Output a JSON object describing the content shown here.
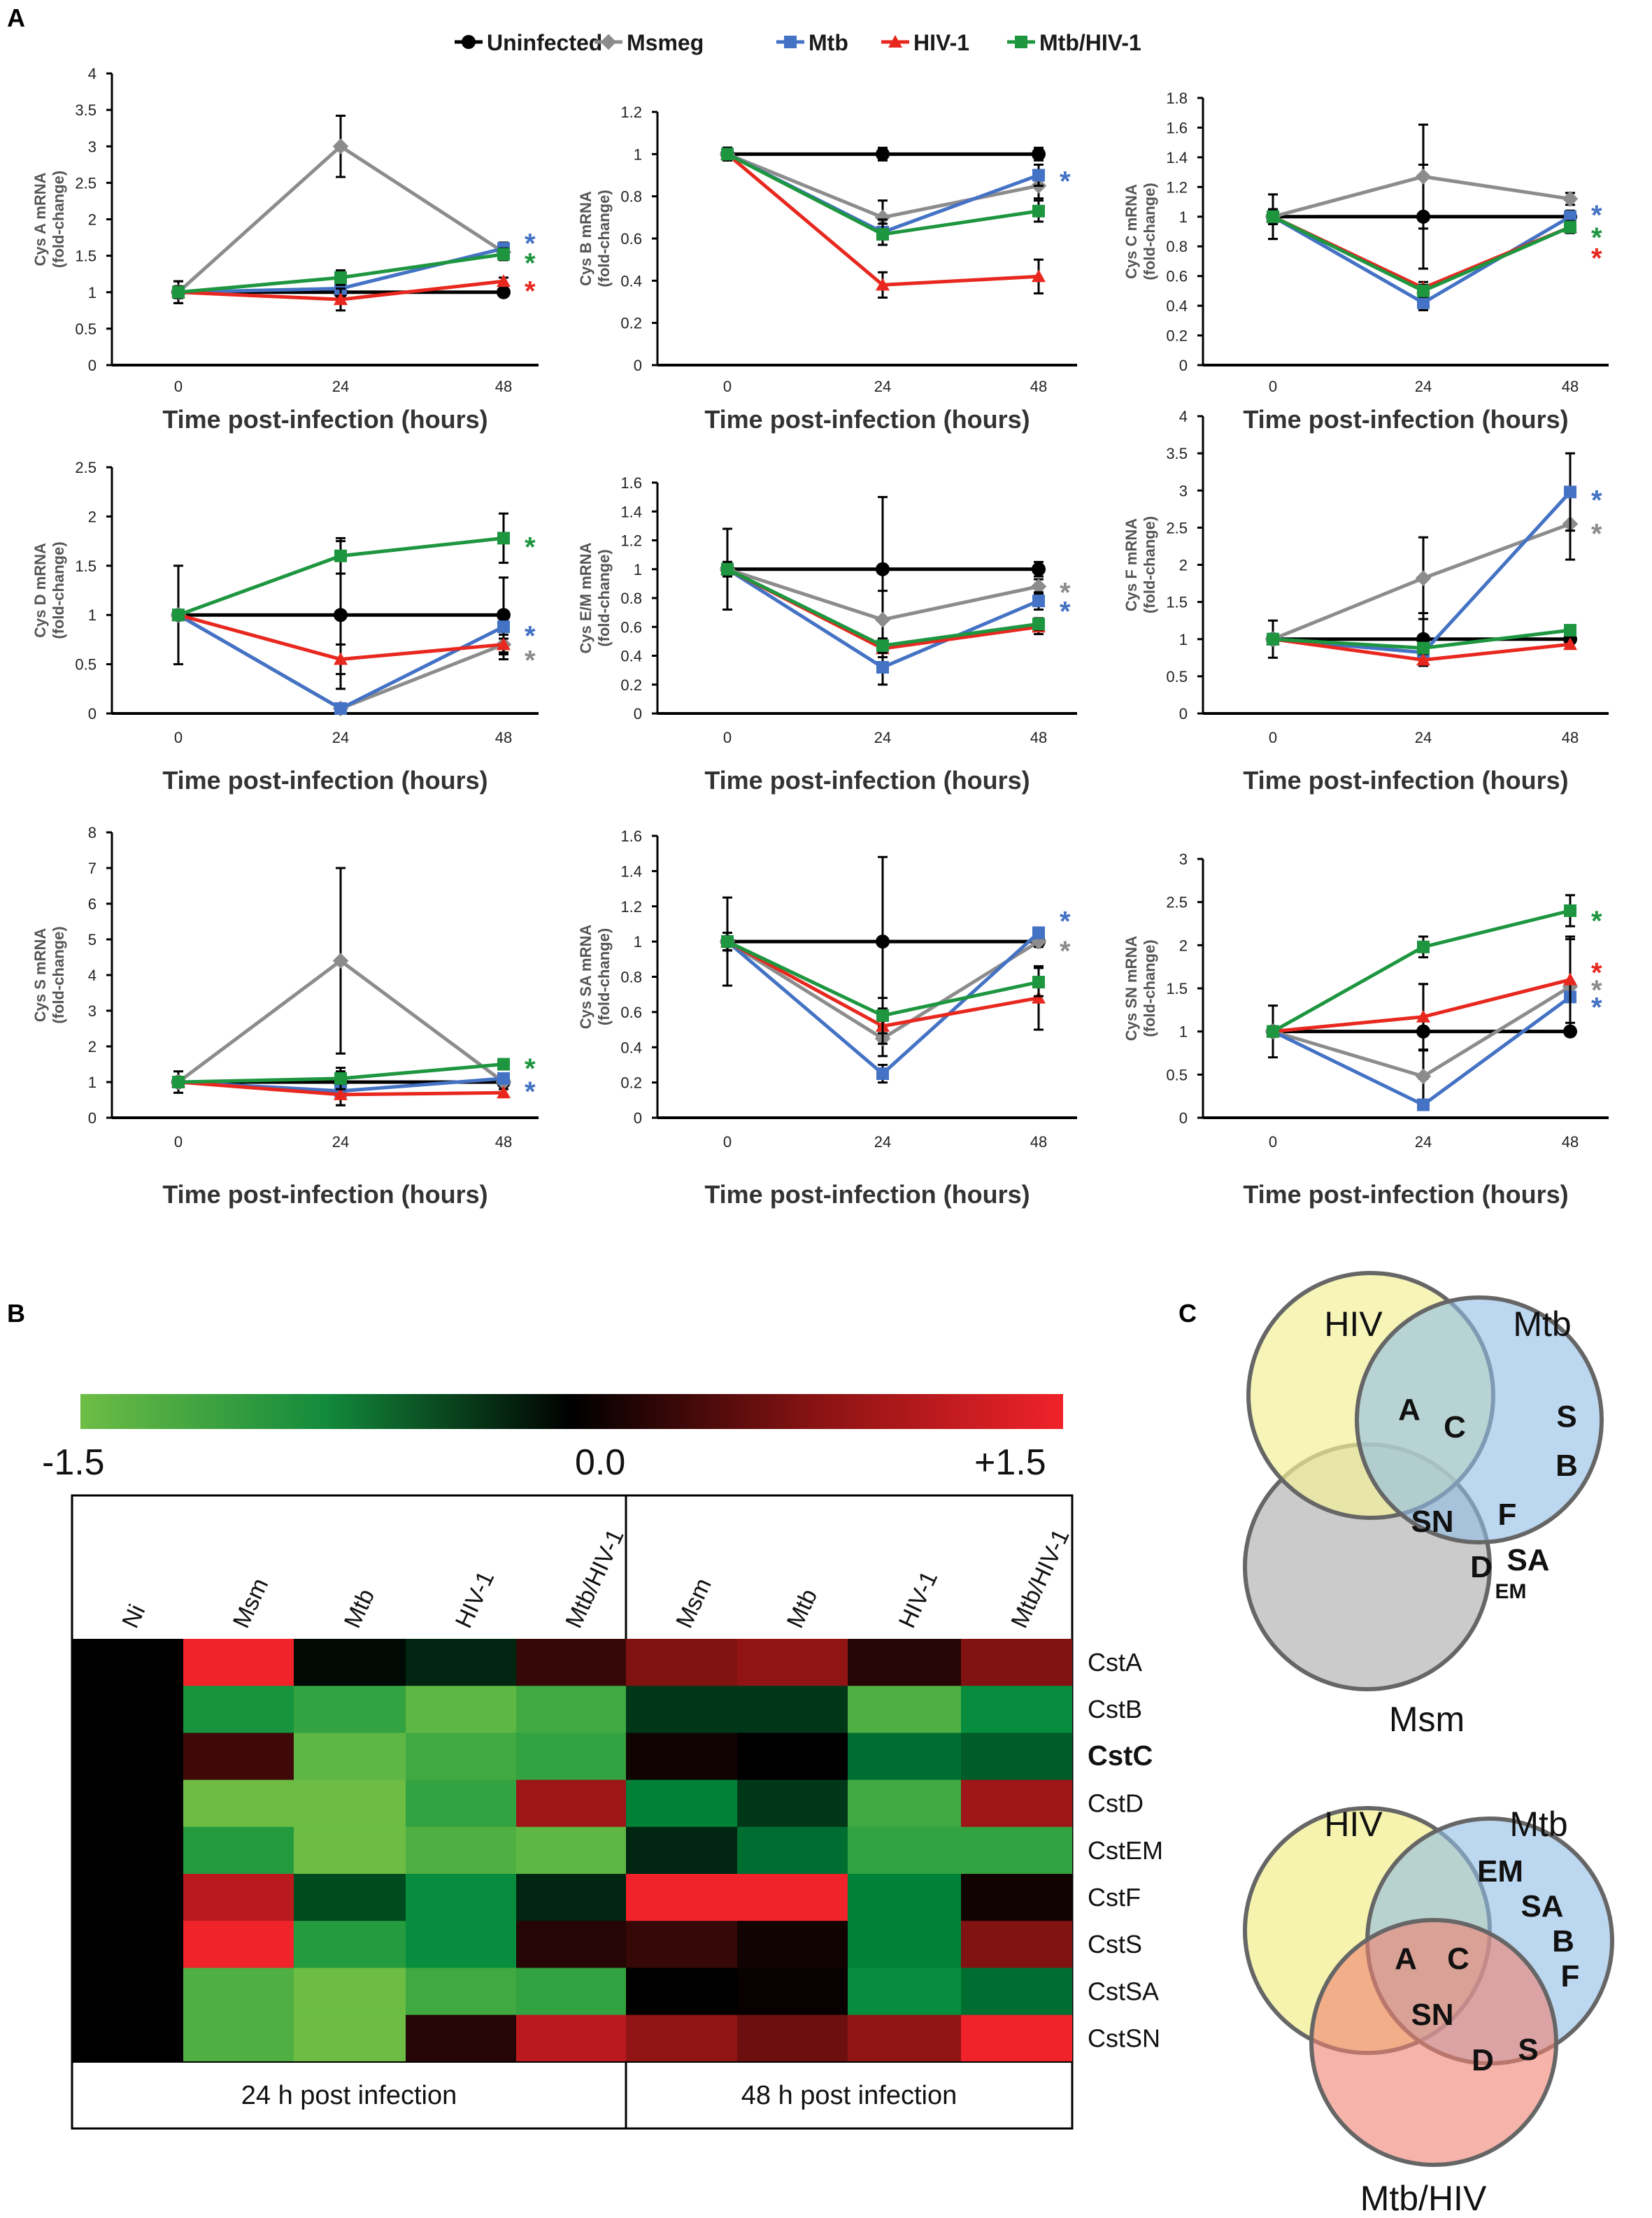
{
  "panel_labels": {
    "a": "A",
    "b": "B",
    "c": "C"
  },
  "colors": {
    "Uninfected": "#000000",
    "Msmeg": "#8c8c8c",
    "Mtb": "#4472c4",
    "HIV-1": "#e8281f",
    "Mtb/HIV-1": "#1e9640"
  },
  "legend": [
    "Uninfected",
    "Msmeg",
    "Mtb",
    "HIV-1",
    "Mtb/HIV-1"
  ],
  "chart_data": [
    {
      "type": "line",
      "title": "",
      "ylabel": "Cys A mRNA\n(fold-change)",
      "xlabel": "Time post-infection (hours)",
      "x": [
        0,
        24,
        48
      ],
      "ylim": [
        0,
        4
      ],
      "yticks": [
        0,
        0.5,
        1,
        1.5,
        2,
        2.5,
        3,
        3.5,
        4
      ],
      "series": [
        {
          "name": "Uninfected",
          "values": [
            1,
            1,
            1
          ],
          "err": [
            0.15,
            0.05,
            0.04
          ]
        },
        {
          "name": "Msmeg",
          "values": [
            1,
            3.0,
            1.55
          ],
          "err": [
            0.15,
            0.42,
            0.06
          ]
        },
        {
          "name": "Mtb",
          "values": [
            1,
            1.05,
            1.6
          ],
          "err": [
            0.08,
            0.08,
            0.08
          ]
        },
        {
          "name": "HIV-1",
          "values": [
            1,
            0.9,
            1.15
          ],
          "err": [
            0.08,
            0.15,
            0.05
          ]
        },
        {
          "name": "Mtb/HIV-1",
          "values": [
            1,
            1.2,
            1.52
          ],
          "err": [
            0.08,
            0.1,
            0.08
          ]
        }
      ],
      "sig": [
        {
          "y": 1.75,
          "color": "Mtb"
        },
        {
          "y": 1.48,
          "color": "Mtb/HIV-1"
        },
        {
          "y": 1.1,
          "color": "HIV-1"
        }
      ]
    },
    {
      "type": "line",
      "title": "",
      "ylabel": "Cys B mRNA\n(fold-change)",
      "xlabel": "Time post-infection (hours)",
      "x": [
        0,
        24,
        48
      ],
      "ylim": [
        0,
        1.2
      ],
      "yticks": [
        0,
        0.2,
        0.4,
        0.6,
        0.8,
        1,
        1.2
      ],
      "series": [
        {
          "name": "Uninfected",
          "values": [
            1,
            1,
            1
          ],
          "err": [
            0.03,
            0.03,
            0.03
          ]
        },
        {
          "name": "Msmeg",
          "values": [
            1,
            0.7,
            0.85
          ],
          "err": [
            0.03,
            0.08,
            0.06
          ]
        },
        {
          "name": "Mtb",
          "values": [
            1,
            0.63,
            0.9
          ],
          "err": [
            0.03,
            0.06,
            0.05
          ]
        },
        {
          "name": "HIV-1",
          "values": [
            1,
            0.38,
            0.42
          ],
          "err": [
            0.03,
            0.06,
            0.08
          ]
        },
        {
          "name": "Mtb/HIV-1",
          "values": [
            1,
            0.62,
            0.73
          ],
          "err": [
            0.03,
            0.05,
            0.05
          ]
        }
      ],
      "sig": [
        {
          "y": 0.9,
          "color": "Mtb"
        }
      ]
    },
    {
      "type": "line",
      "title": "",
      "ylabel": "Cys C mRNA\n(fold-change)",
      "xlabel": "Time post-infection (hours)",
      "x": [
        0,
        24,
        48
      ],
      "ylim": [
        0,
        1.8
      ],
      "yticks": [
        0,
        0.2,
        0.4,
        0.6,
        0.8,
        1,
        1.2,
        1.4,
        1.6,
        1.8
      ],
      "series": [
        {
          "name": "Uninfected",
          "values": [
            1,
            1,
            1
          ],
          "err": [
            0.15,
            0.35,
            0.04
          ]
        },
        {
          "name": "Msmeg",
          "values": [
            1,
            1.27,
            1.12
          ],
          "err": [
            0.15,
            0.35,
            0.04
          ]
        },
        {
          "name": "Mtb",
          "values": [
            1,
            0.42,
            1.0
          ],
          "err": [
            0.05,
            0.05,
            0.04
          ]
        },
        {
          "name": "HIV-1",
          "values": [
            1,
            0.52,
            0.93
          ],
          "err": [
            0.05,
            0.04,
            0.04
          ]
        },
        {
          "name": "Mtb/HIV-1",
          "values": [
            1,
            0.5,
            0.93
          ],
          "err": [
            0.05,
            0.04,
            0.04
          ]
        }
      ],
      "sig": [
        {
          "y": 1.05,
          "color": "Mtb"
        },
        {
          "y": 0.9,
          "color": "Mtb/HIV-1"
        },
        {
          "y": 0.76,
          "color": "HIV-1"
        }
      ]
    },
    {
      "type": "line",
      "title": "",
      "ylabel": "Cys D mRNA\n(fold-change)",
      "xlabel": "Time post-infection (hours)",
      "x": [
        0,
        24,
        48
      ],
      "ylim": [
        0,
        2.5
      ],
      "yticks": [
        0,
        0.5,
        1,
        1.5,
        2,
        2.5
      ],
      "series": [
        {
          "name": "Uninfected",
          "values": [
            1,
            1,
            1
          ],
          "err": [
            0.5,
            0.75,
            0.38
          ]
        },
        {
          "name": "Msmeg",
          "values": [
            1,
            0.05,
            0.7
          ],
          "err": [
            0.05,
            0.05,
            0.15
          ]
        },
        {
          "name": "Mtb",
          "values": [
            1,
            0.05,
            0.88
          ],
          "err": [
            0.05,
            0.03,
            0.12
          ]
        },
        {
          "name": "HIV-1",
          "values": [
            1,
            0.55,
            0.7
          ],
          "err": [
            0.05,
            0.15,
            0.1
          ]
        },
        {
          "name": "Mtb/HIV-1",
          "values": [
            1,
            1.6,
            1.78
          ],
          "err": [
            0.05,
            0.18,
            0.25
          ]
        }
      ],
      "sig": [
        {
          "y": 1.75,
          "color": "Mtb/HIV-1"
        },
        {
          "y": 0.85,
          "color": "Mtb"
        },
        {
          "y": 0.6,
          "color": "Msmeg"
        }
      ]
    },
    {
      "type": "line",
      "title": "",
      "ylabel": "Cys E/M mRNA\n(fold-change)",
      "xlabel": "Time post-infection (hours)",
      "x": [
        0,
        24,
        48
      ],
      "ylim": [
        0,
        1.6
      ],
      "yticks": [
        0,
        0.2,
        0.4,
        0.6,
        0.8,
        1,
        1.2,
        1.4,
        1.6
      ],
      "series": [
        {
          "name": "Uninfected",
          "values": [
            1,
            1,
            1
          ],
          "err": [
            0.28,
            0.5,
            0.05
          ]
        },
        {
          "name": "Msmeg",
          "values": [
            1,
            0.65,
            0.88
          ],
          "err": [
            0.05,
            0.2,
            0.05
          ]
        },
        {
          "name": "Mtb",
          "values": [
            1,
            0.32,
            0.78
          ],
          "err": [
            0.05,
            0.12,
            0.06
          ]
        },
        {
          "name": "HIV-1",
          "values": [
            1,
            0.45,
            0.6
          ],
          "err": [
            0.05,
            0.06,
            0.05
          ]
        },
        {
          "name": "Mtb/HIV-1",
          "values": [
            1,
            0.47,
            0.62
          ],
          "err": [
            0.05,
            0.05,
            0.04
          ]
        }
      ],
      "sig": [
        {
          "y": 0.88,
          "color": "Msmeg"
        },
        {
          "y": 0.75,
          "color": "Mtb"
        }
      ]
    },
    {
      "type": "line",
      "title": "",
      "ylabel": "Cys F mRNA\n(fold-change)",
      "xlabel": "Time post-infection (hours)",
      "x": [
        0,
        24,
        48
      ],
      "ylim": [
        0,
        4
      ],
      "yticks": [
        0,
        0.5,
        1,
        1.5,
        2,
        2.5,
        3,
        3.5,
        4
      ],
      "series": [
        {
          "name": "Uninfected",
          "values": [
            1,
            1,
            1
          ],
          "err": [
            0.25,
            0.35,
            0.05
          ]
        },
        {
          "name": "Msmeg",
          "values": [
            1,
            1.82,
            2.55
          ],
          "err": [
            0.05,
            0.55,
            0.48
          ]
        },
        {
          "name": "Mtb",
          "values": [
            1,
            0.82,
            2.98
          ],
          "err": [
            0.05,
            0.15,
            0.52
          ]
        },
        {
          "name": "HIV-1",
          "values": [
            1,
            0.72,
            0.93
          ],
          "err": [
            0.05,
            0.08,
            0.06
          ]
        },
        {
          "name": "Mtb/HIV-1",
          "values": [
            1,
            0.88,
            1.12
          ],
          "err": [
            0.05,
            0.05,
            0.05
          ]
        }
      ],
      "sig": [
        {
          "y": 2.95,
          "color": "Mtb"
        },
        {
          "y": 2.5,
          "color": "Msmeg"
        }
      ]
    },
    {
      "type": "line",
      "title": "",
      "ylabel": "Cys S mRNA\n(fold-change)",
      "xlabel": "Time post-infection (hours)",
      "x": [
        0,
        24,
        48
      ],
      "ylim": [
        0,
        8
      ],
      "yticks": [
        0,
        1,
        2,
        3,
        4,
        5,
        6,
        7,
        8
      ],
      "series": [
        {
          "name": "Uninfected",
          "values": [
            1,
            1,
            1
          ],
          "err": [
            0.3,
            0.3,
            0.1
          ]
        },
        {
          "name": "Msmeg",
          "values": [
            1,
            4.4,
            1.0
          ],
          "err": [
            0.1,
            2.6,
            0.1
          ]
        },
        {
          "name": "Mtb",
          "values": [
            1,
            0.75,
            1.1
          ],
          "err": [
            0.1,
            0.4,
            0.1
          ]
        },
        {
          "name": "HIV-1",
          "values": [
            1,
            0.65,
            0.7
          ],
          "err": [
            0.1,
            0.3,
            0.1
          ]
        },
        {
          "name": "Mtb/HIV-1",
          "values": [
            1,
            1.1,
            1.5
          ],
          "err": [
            0.1,
            0.3,
            0.1
          ]
        }
      ],
      "sig": [
        {
          "y": 1.55,
          "color": "Mtb/HIV-1"
        },
        {
          "y": 0.9,
          "color": "Mtb"
        }
      ]
    },
    {
      "type": "line",
      "title": "",
      "ylabel": "Cys SA mRNA\n(fold-change)",
      "xlabel": "Time post-infection (hours)",
      "x": [
        0,
        24,
        48
      ],
      "ylim": [
        0,
        1.6
      ],
      "yticks": [
        0,
        0.2,
        0.4,
        0.6,
        0.8,
        1,
        1.2,
        1.4,
        1.6
      ],
      "series": [
        {
          "name": "Uninfected",
          "values": [
            1,
            1,
            1
          ],
          "err": [
            0.25,
            0.48,
            0.03
          ]
        },
        {
          "name": "Msmeg",
          "values": [
            1,
            0.45,
            1.0
          ],
          "err": [
            0.05,
            0.1,
            0.03
          ]
        },
        {
          "name": "Mtb",
          "values": [
            1,
            0.25,
            1.05
          ],
          "err": [
            0.05,
            0.05,
            0.03
          ]
        },
        {
          "name": "HIV-1",
          "values": [
            1,
            0.52,
            0.68
          ],
          "err": [
            0.05,
            0.1,
            0.18
          ]
        },
        {
          "name": "Mtb/HIV-1",
          "values": [
            1,
            0.58,
            0.77
          ],
          "err": [
            0.05,
            0.1,
            0.08
          ]
        }
      ],
      "sig": [
        {
          "y": 1.15,
          "color": "Mtb"
        },
        {
          "y": 0.98,
          "color": "Msmeg"
        }
      ]
    },
    {
      "type": "line",
      "title": "",
      "ylabel": "Cys SN mRNA\n(fold-change)",
      "xlabel": "Time post-infection (hours)",
      "x": [
        0,
        24,
        48
      ],
      "ylim": [
        0,
        3
      ],
      "yticks": [
        0,
        0.5,
        1,
        1.5,
        2,
        2.5,
        3
      ],
      "series": [
        {
          "name": "Uninfected",
          "values": [
            1,
            1,
            1
          ],
          "err": [
            0.3,
            0.55,
            0.05
          ]
        },
        {
          "name": "Msmeg",
          "values": [
            1,
            0.48,
            1.52
          ],
          "err": [
            0.05,
            0.3,
            0.55
          ]
        },
        {
          "name": "Mtb",
          "values": [
            1,
            0.15,
            1.4
          ],
          "err": [
            0.05,
            0.05,
            0.05
          ]
        },
        {
          "name": "HIV-1",
          "values": [
            1,
            1.17,
            1.6
          ],
          "err": [
            0.05,
            0.38,
            0.5
          ]
        },
        {
          "name": "Mtb/HIV-1",
          "values": [
            1,
            1.98,
            2.4
          ],
          "err": [
            0.05,
            0.12,
            0.18
          ]
        }
      ],
      "sig": [
        {
          "y": 2.35,
          "color": "Mtb/HIV-1"
        },
        {
          "y": 1.75,
          "color": "HIV-1"
        },
        {
          "y": 1.55,
          "color": "Msmeg"
        },
        {
          "y": 1.35,
          "color": "Mtb"
        }
      ]
    },
    {
      "type": "heatmap",
      "colorbar": {
        "min_label": "-1.5",
        "mid_label": "0.0",
        "max_label": "+1.5",
        "min": -1.5,
        "max": 1.5
      },
      "columns": [
        "Ni",
        "Msm",
        "Mtb",
        "HIV-1",
        "Mtb/HIV-1",
        "Msm",
        "Mtb",
        "HIV-1",
        "Mtb/HIV-1"
      ],
      "rows": [
        "CstA",
        "CstB",
        "CstC",
        "CstD",
        "CstEM",
        "CstF",
        "CstS",
        "CstSA",
        "CstSN"
      ],
      "bold_row": "CstC",
      "group_labels": [
        "24 h post infection",
        "48 h post infection"
      ],
      "values": [
        [
          0,
          1.5,
          -0.05,
          -0.2,
          0.3,
          0.7,
          0.8,
          0.2,
          0.7
        ],
        [
          0,
          -0.9,
          -1.1,
          -1.4,
          -1.2,
          -0.3,
          -0.3,
          -1.3,
          -0.8
        ],
        [
          0,
          0.35,
          -1.4,
          -1.2,
          -1.1,
          0.1,
          0.0,
          -0.6,
          -0.5
        ],
        [
          0,
          -1.5,
          -1.5,
          -1.1,
          0.9,
          -0.7,
          -0.3,
          -1.2,
          0.9
        ],
        [
          0,
          -1.0,
          -1.5,
          -1.3,
          -1.4,
          -0.2,
          -0.6,
          -1.1,
          -1.1
        ],
        [
          0,
          1.1,
          -0.4,
          -0.8,
          -0.2,
          1.5,
          1.5,
          -0.7,
          0.1
        ],
        [
          0,
          1.5,
          -1.0,
          -0.8,
          0.2,
          0.3,
          0.1,
          -0.7,
          0.7
        ],
        [
          0,
          -1.3,
          -1.5,
          -1.2,
          -1.1,
          0.0,
          0.05,
          -0.8,
          -0.6
        ],
        [
          0,
          -1.3,
          -1.5,
          0.2,
          1.1,
          0.8,
          0.6,
          0.8,
          1.5
        ]
      ]
    },
    {
      "type": "venn",
      "top": {
        "labels": [
          "HIV",
          "Mtb",
          "Msm"
        ],
        "regions": {
          "hiv_mtb": [
            "A",
            "C"
          ],
          "all": [
            "SN"
          ],
          "mtb_only": [
            "S",
            "B"
          ],
          "mtb_msm": [
            "F",
            "D",
            "SA",
            "EM"
          ]
        }
      },
      "bottom": {
        "labels": [
          "HIV",
          "Mtb",
          "Mtb/HIV"
        ],
        "regions": {
          "mtb_only": [
            "EM",
            "SA",
            "B",
            "F"
          ],
          "all": [
            "A",
            "C",
            "SN"
          ],
          "mtb_mtbhiv": [
            "D",
            "S"
          ]
        }
      }
    }
  ]
}
